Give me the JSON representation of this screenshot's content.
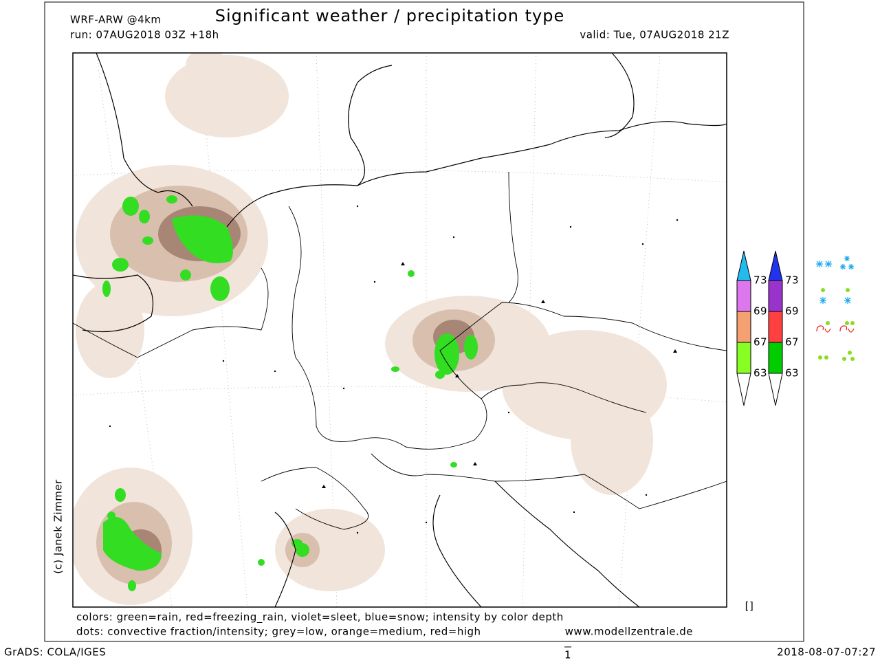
{
  "header": {
    "model": "WRF-ARW @4km",
    "title": "Significant weather / precipitation type",
    "run": "run: 07AUG2018 03Z +18h",
    "valid": "valid: Tue, 07AUG2018 21Z"
  },
  "credit": "(c) Janek Zimmer",
  "colorbars": [
    {
      "labels": [
        73,
        69,
        67,
        63
      ]
    },
    {
      "labels": [
        73,
        69,
        67,
        63
      ]
    }
  ],
  "notes": [
    "colors: green=rain, red=freezing_rain, violet=sleet, blue=snow; intensity by color depth",
    "dots: convective fraction/intensity;   grey=low, orange=medium, red=high",
    "www.modellzentrale.de"
  ],
  "bracket": "[]",
  "footer": {
    "left": "GrADS: COLA/IGES",
    "center": "1",
    "right": "2018-08-07-07:27"
  }
}
